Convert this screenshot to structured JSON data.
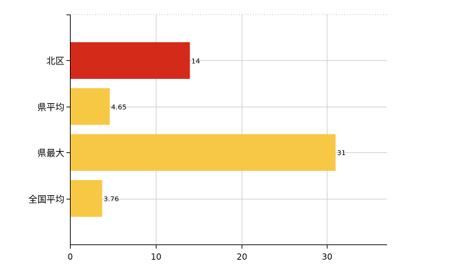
{
  "chart_data": {
    "type": "bar",
    "orientation": "horizontal",
    "title": "",
    "xlabel": "",
    "ylabel": "",
    "categories": [
      "北区",
      "県平均",
      "県最大",
      "全国平均"
    ],
    "values": [
      14,
      4.65,
      31,
      3.76
    ],
    "data_labels": [
      "14",
      "4.65",
      "31",
      "3.76"
    ],
    "colors": [
      "#d42a1a",
      "#f7c844",
      "#f7c844",
      "#f7c844"
    ],
    "xlim": [
      0,
      37
    ],
    "x_ticks": [
      0,
      10,
      20,
      30
    ],
    "x_tick_labels": [
      "0",
      "10",
      "20",
      "30"
    ],
    "grid": true,
    "legend": "none"
  }
}
